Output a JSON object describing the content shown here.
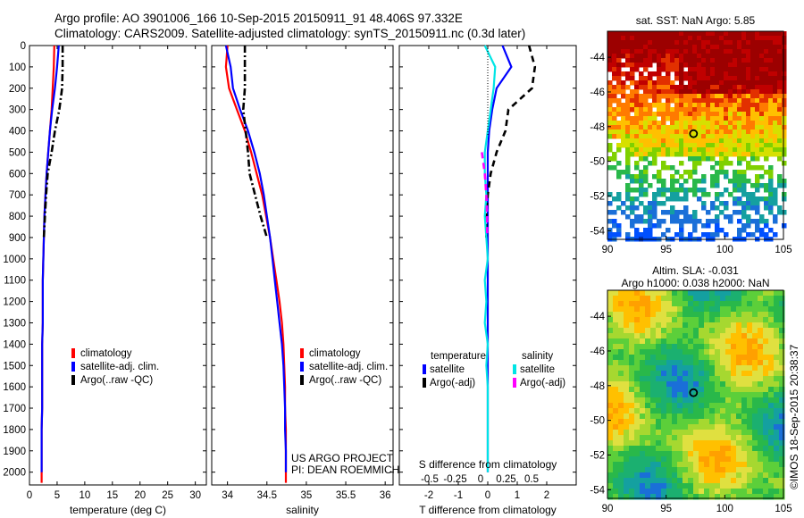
{
  "title_line1": "Argo profile: AO 3901006_166 10-Sep-2015 20150911_91 48.406S 97.332E",
  "title_line2": "Climatology: CARS2009. Satellite-adjusted climatology: synTS_20150911.nc (0.3d later)",
  "credit_line1": "US ARGO PROJECT",
  "credit_line2": "PI: DEAN ROEMMICH",
  "stamp": "©IMOS 18-Sep-2015 20:38:37",
  "colors": {
    "climatology": "#ff0000",
    "satellite": "#0000ff",
    "argo": "#000000",
    "satellite_salinity": "#00e5e5",
    "argo_salinity": "#ff00ff"
  },
  "chart_data": [
    {
      "type": "line",
      "xlabel": "temperature (deg C)",
      "xlim": [
        0,
        32
      ],
      "xticks": [
        0,
        5,
        10,
        15,
        20,
        25,
        30
      ],
      "ylim": [
        2060,
        0
      ],
      "yticks": [
        0,
        100,
        200,
        300,
        400,
        500,
        600,
        700,
        800,
        900,
        1000,
        1100,
        1200,
        1300,
        1400,
        1500,
        1600,
        1700,
        1800,
        1900,
        2000
      ],
      "legend": [
        "climatology",
        "satellite-adj. clim.",
        "Argo(..raw -QC)"
      ],
      "series": [
        {
          "name": "climatology",
          "color": "#ff0000",
          "style": "solid",
          "x": [
            4.5,
            4.4,
            4.2,
            4.0,
            3.7,
            3.4,
            3.1,
            2.9,
            2.7,
            2.6,
            2.5,
            2.4,
            2.4,
            2.4,
            2.3,
            2.3,
            2.3,
            2.3,
            2.2,
            2.2,
            2.2,
            2.2
          ],
          "y": [
            0,
            100,
            200,
            300,
            400,
            500,
            600,
            700,
            800,
            900,
            1000,
            1100,
            1200,
            1300,
            1400,
            1500,
            1600,
            1700,
            1800,
            1900,
            2000,
            2050
          ]
        },
        {
          "name": "satellite-adj. clim.",
          "color": "#0000ff",
          "style": "solid",
          "x": [
            5.3,
            5.0,
            4.6,
            4.1,
            3.7,
            3.4,
            3.1,
            2.9,
            2.7,
            2.6,
            2.5,
            2.4,
            2.4,
            2.4,
            2.3,
            2.3,
            2.3,
            2.3,
            2.2,
            2.2,
            2.2
          ],
          "y": [
            0,
            100,
            200,
            300,
            400,
            500,
            600,
            700,
            800,
            900,
            1000,
            1100,
            1200,
            1300,
            1400,
            1500,
            1600,
            1700,
            1800,
            1900,
            2000
          ]
        },
        {
          "name": "Argo(..raw -QC)",
          "color": "#000000",
          "style": "dashdot",
          "x": [
            6.0,
            6.0,
            5.9,
            5.4,
            4.6,
            4.0,
            3.3,
            3.0,
            2.8,
            2.6
          ],
          "y": [
            0,
            100,
            200,
            300,
            400,
            500,
            600,
            700,
            800,
            900
          ]
        }
      ]
    },
    {
      "type": "line",
      "xlabel": "salinity",
      "xlim": [
        33.8,
        36.1
      ],
      "xticks": [
        34,
        34.5,
        35,
        35.5,
        36
      ],
      "ylim": [
        2060,
        0
      ],
      "legend": [
        "climatology",
        "satellite-adj. clim.",
        "Argo(..raw -QC)"
      ],
      "series": [
        {
          "name": "climatology",
          "color": "#ff0000",
          "style": "solid",
          "x": [
            34.0,
            33.98,
            34.02,
            34.12,
            34.22,
            34.3,
            34.37,
            34.44,
            34.49,
            34.54,
            34.58,
            34.62,
            34.66,
            34.69,
            34.71,
            34.72,
            34.73,
            34.73,
            34.74,
            34.74,
            34.74,
            34.74
          ],
          "y": [
            0,
            100,
            200,
            300,
            400,
            500,
            600,
            700,
            800,
            900,
            1000,
            1100,
            1200,
            1300,
            1400,
            1500,
            1600,
            1700,
            1800,
            1900,
            2000,
            2050
          ]
        },
        {
          "name": "satellite-adj. clim.",
          "color": "#0000ff",
          "style": "solid",
          "x": [
            33.98,
            34.04,
            34.07,
            34.16,
            34.26,
            34.34,
            34.41,
            34.46,
            34.5,
            34.54,
            34.57,
            34.6,
            34.63,
            34.66,
            34.69,
            34.71,
            34.72,
            34.73,
            34.73,
            34.74,
            34.74
          ],
          "y": [
            0,
            100,
            200,
            300,
            400,
            500,
            600,
            700,
            800,
            900,
            1000,
            1100,
            1200,
            1300,
            1400,
            1500,
            1600,
            1700,
            1800,
            1900,
            2000
          ]
        },
        {
          "name": "Argo(..raw -QC)",
          "color": "#000000",
          "style": "dashdot",
          "x": [
            34.22,
            34.22,
            34.22,
            34.2,
            34.23,
            34.26,
            34.28,
            34.35,
            34.42,
            34.5
          ],
          "y": [
            0,
            100,
            200,
            300,
            400,
            500,
            600,
            700,
            800,
            900
          ]
        }
      ]
    },
    {
      "type": "line",
      "xlabel": "T difference from climatology",
      "xlabel2": "S difference from climatology",
      "xlim": [
        -3.0,
        3.0
      ],
      "xticks": [
        -2,
        -1,
        0,
        1,
        2
      ],
      "xticks2_values": [
        -2,
        -1,
        0,
        1,
        2
      ],
      "xticks2_labels": [
        "-0.5",
        "-0.25",
        "0",
        "0.25",
        "0.5"
      ],
      "ylim": [
        2060,
        0
      ],
      "legend_headers": [
        "temperature",
        "salinity"
      ],
      "legend": [
        "satellite",
        "Argo(-adj)",
        "satellite",
        "Argo(-adj)"
      ],
      "series": [
        {
          "name": "satellite",
          "group": "temperature",
          "color": "#0000ff",
          "style": "solid",
          "x": [
            0.5,
            0.8,
            0.3,
            0.15,
            0.05,
            0.0,
            0.0,
            0.0,
            0.0,
            0.0,
            0.0,
            0.0,
            0.0,
            0.0,
            0.0,
            0.0,
            0.0,
            0.0,
            0.0,
            0.0,
            0.0
          ],
          "y": [
            0,
            100,
            200,
            300,
            400,
            500,
            600,
            700,
            800,
            900,
            1000,
            1100,
            1200,
            1300,
            1400,
            1500,
            1600,
            1700,
            1800,
            1900,
            2000
          ]
        },
        {
          "name": "Argo(-adj)",
          "group": "temperature",
          "color": "#000000",
          "style": "dashed",
          "x": [
            1.4,
            1.6,
            1.5,
            0.7,
            0.6,
            0.3,
            0.1,
            0.0,
            -0.05,
            -0.05
          ],
          "y": [
            0,
            100,
            200,
            300,
            400,
            500,
            600,
            700,
            800,
            900
          ]
        },
        {
          "name": "satellite",
          "group": "salinity",
          "color": "#00e5e5",
          "style": "solid",
          "x": [
            -0.1,
            0.25,
            0.2,
            0.1,
            0.0,
            -0.1,
            -0.1,
            -0.05,
            -0.1,
            -0.05,
            0.0,
            -0.1,
            -0.05,
            -0.1,
            0.0,
            -0.05,
            0.0,
            0.0,
            0.0,
            0.0,
            0.0
          ],
          "y": [
            0,
            100,
            200,
            300,
            400,
            500,
            600,
            700,
            800,
            900,
            1000,
            1100,
            1200,
            1300,
            1400,
            1500,
            1600,
            1700,
            1800,
            1900,
            2000
          ]
        },
        {
          "name": "Argo(-adj)",
          "group": "salinity",
          "color": "#ff00ff",
          "style": "dashed",
          "x": [
            -0.2,
            -0.1,
            -0.05,
            -0.02,
            -0.02
          ],
          "y": [
            500,
            600,
            700,
            800,
            900
          ]
        }
      ]
    },
    {
      "type": "heatmap",
      "title": "sat. SST: NaN Argo: 5.85",
      "xlim": [
        90,
        105
      ],
      "ylim": [
        -54.5,
        -42.5
      ],
      "xticks": [
        90,
        95,
        100,
        105
      ],
      "yticks": [
        -44,
        -46,
        -48,
        -50,
        -52,
        -54
      ],
      "marker": {
        "lon": 97.332,
        "lat": -48.406
      }
    },
    {
      "type": "heatmap",
      "title_line1": "Altim. SLA: -0.031",
      "title_line2": "Argo h1000: 0.038 h2000: NaN",
      "xlim": [
        90,
        105
      ],
      "ylim": [
        -54.5,
        -42.5
      ],
      "xticks": [
        90,
        95,
        100,
        105
      ],
      "yticks": [
        -44,
        -46,
        -48,
        -50,
        -52,
        -54
      ],
      "marker": {
        "lon": 97.332,
        "lat": -48.406
      }
    }
  ]
}
